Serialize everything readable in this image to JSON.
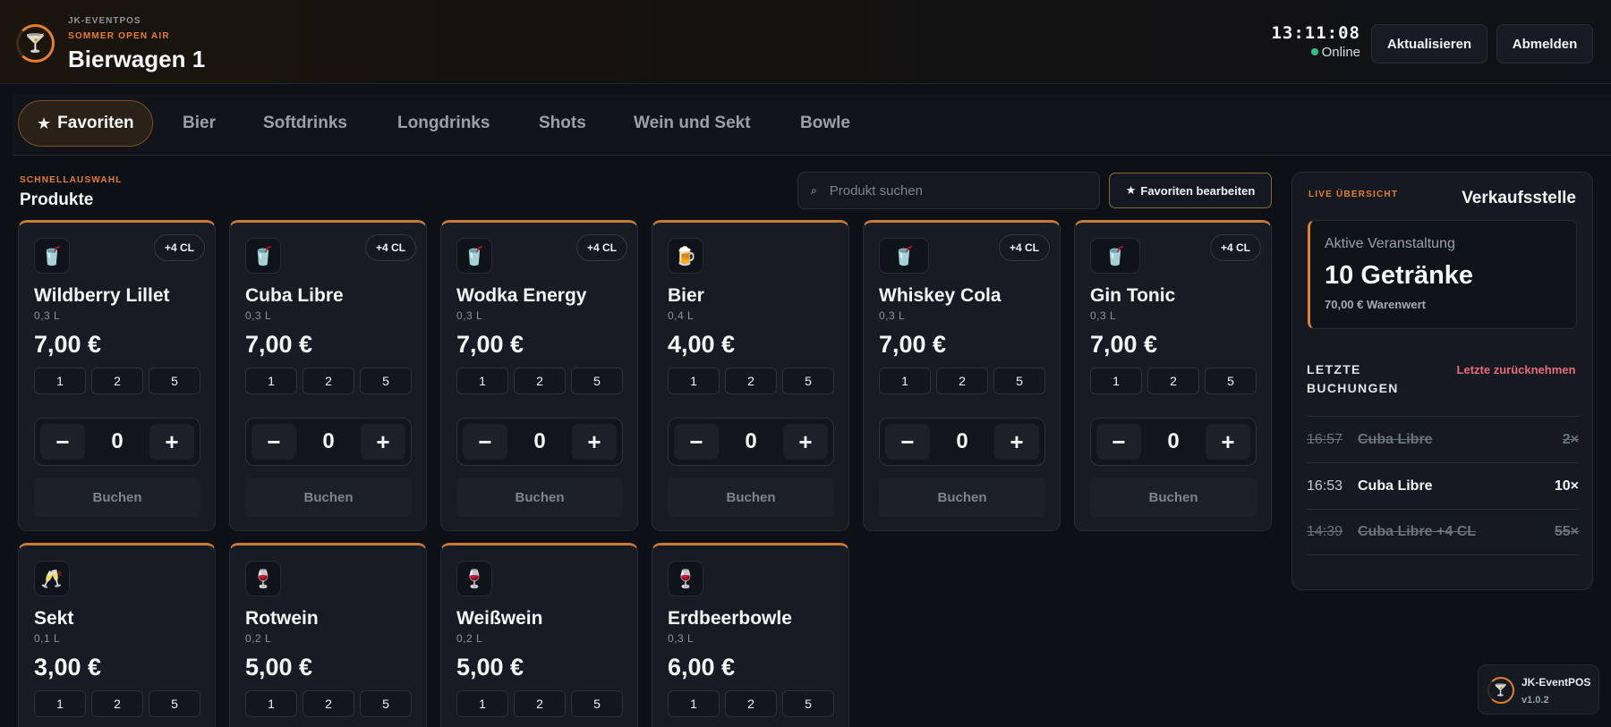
{
  "header": {
    "brand": "JK-EVENTPOS",
    "event": "SOMMER OPEN AIR",
    "station": "Bierwagen 1",
    "clock": "13:11:08",
    "status": "Online",
    "refresh_label": "Aktualisieren",
    "logout_label": "Abmelden",
    "logo_icon": "cocktail-icon"
  },
  "tabs": [
    {
      "label": "Favoriten",
      "active": true,
      "icon": "star-icon"
    },
    {
      "label": "Bier"
    },
    {
      "label": "Softdrinks"
    },
    {
      "label": "Longdrinks"
    },
    {
      "label": "Shots"
    },
    {
      "label": "Wein und Sekt"
    },
    {
      "label": "Bowle"
    }
  ],
  "section": {
    "label": "SCHNELLAUSWAHL",
    "title": "Produkte",
    "search_placeholder": "Produkt suchen",
    "favorites_edit_label": "Favoriten bearbeiten"
  },
  "quick_labels": [
    "1",
    "2",
    "5"
  ],
  "book_label": "Buchen",
  "products": [
    {
      "name": "Wildberry Lillet",
      "volume": "0,3 L",
      "price": "7,00 €",
      "badge": "+4 CL",
      "icon": "cup-with-straw-icon",
      "qty": "0"
    },
    {
      "name": "Cuba Libre",
      "volume": "0,3 L",
      "price": "7,00 €",
      "badge": "+4 CL",
      "icon": "cup-with-straw-icon",
      "qty": "0"
    },
    {
      "name": "Wodka Energy",
      "volume": "0,3 L",
      "price": "7,00 €",
      "badge": "+4 CL",
      "icon": "cup-with-straw-icon",
      "qty": "0"
    },
    {
      "name": "Bier",
      "volume": "0,4 L",
      "price": "4,00 €",
      "badge": "",
      "icon": "beer-mug-icon",
      "qty": "0"
    },
    {
      "name": "Whiskey Cola",
      "volume": "0,3 L",
      "price": "7,00 €",
      "badge": "+4 CL",
      "icon": "cup-with-straw-icon",
      "qty": "0"
    },
    {
      "name": "Gin Tonic",
      "volume": "0,3 L",
      "price": "7,00 €",
      "badge": "+4 CL",
      "icon": "cup-with-straw-icon",
      "qty": "0"
    },
    {
      "name": "Sekt",
      "volume": "0,1 L",
      "price": "3,00 €",
      "badge": "",
      "icon": "champagne-glass-icon"
    },
    {
      "name": "Rotwein",
      "volume": "0,2 L",
      "price": "5,00 €",
      "badge": "",
      "icon": "wine-glass-icon"
    },
    {
      "name": "Weißwein",
      "volume": "0,2 L",
      "price": "5,00 €",
      "badge": "",
      "icon": "wine-glass-icon"
    },
    {
      "name": "Erdbeerbowle",
      "volume": "0,3 L",
      "price": "6,00 €",
      "badge": "",
      "icon": "wine-glass-icon"
    }
  ],
  "panel": {
    "live_label": "LIVE ÜBERSICHT",
    "title": "Verkaufsstelle",
    "active_label": "Aktive Veranstaltung",
    "active_count": "10 Getränke",
    "active_value": "70,00 € Warenwert",
    "last_bookings_title": "LETZTE BUCHUNGEN",
    "undo_label": "Letzte zurücknehmen",
    "bookings": [
      {
        "time": "16:57",
        "name": "Cuba Libre",
        "qty": "2×",
        "cancelled": true
      },
      {
        "time": "16:53",
        "name": "Cuba Libre",
        "qty": "10×",
        "cancelled": false
      },
      {
        "time": "14:39",
        "name": "Cuba Libre +4 CL",
        "qty": "55×",
        "cancelled": true
      }
    ]
  },
  "version": {
    "name": "JK-EventPOS",
    "number": "v1.0.2"
  }
}
